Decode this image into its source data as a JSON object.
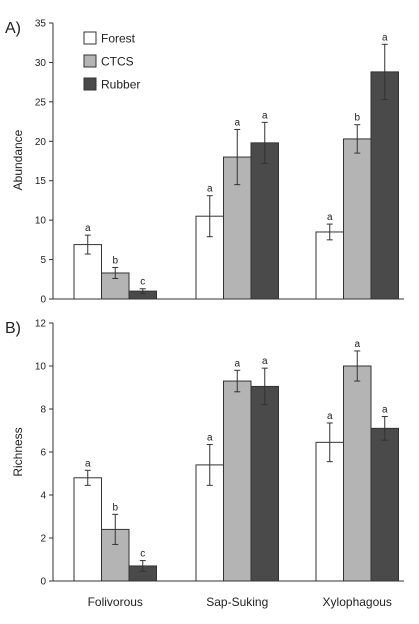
{
  "chart_data": [
    {
      "type": "bar",
      "panel_label": "A)",
      "ylabel": "Abundance",
      "ylim": [
        0,
        35
      ],
      "yticks": [
        "0",
        "5",
        "10",
        "15",
        "20",
        "25",
        "30",
        "35"
      ],
      "categories": [
        "Folivorous",
        "Sap-Suking",
        "Xylophagous"
      ],
      "legend": "top-left",
      "series": [
        {
          "name": "Forest",
          "color": "#ffffff",
          "values": [
            6.9,
            10.5,
            8.5
          ],
          "errors": [
            1.2,
            2.6,
            1.0
          ],
          "letters": [
            "a",
            "a",
            "a"
          ]
        },
        {
          "name": "CTCS",
          "color": "#b4b4b4",
          "values": [
            3.3,
            18.0,
            20.3
          ],
          "errors": [
            0.7,
            3.5,
            1.8
          ],
          "letters": [
            "b",
            "a",
            "b"
          ]
        },
        {
          "name": "Rubber",
          "color": "#4a4a4a",
          "values": [
            1.0,
            19.8,
            28.8
          ],
          "errors": [
            0.3,
            2.6,
            3.5
          ],
          "letters": [
            "c",
            "a",
            "a"
          ]
        }
      ]
    },
    {
      "type": "bar",
      "panel_label": "B)",
      "ylabel": "Richness",
      "ylim": [
        0,
        12
      ],
      "yticks": [
        "0",
        "2",
        "4",
        "6",
        "8",
        "10",
        "12"
      ],
      "categories": [
        "Folivorous",
        "Sap-Suking",
        "Xylophagous"
      ],
      "series": [
        {
          "name": "Forest",
          "color": "#ffffff",
          "values": [
            4.8,
            5.4,
            6.45
          ],
          "errors": [
            0.35,
            0.95,
            0.9
          ],
          "letters": [
            "a",
            "a",
            "a"
          ]
        },
        {
          "name": "CTCS",
          "color": "#b4b4b4",
          "values": [
            2.4,
            9.3,
            10.0
          ],
          "errors": [
            0.7,
            0.5,
            0.7
          ],
          "letters": [
            "b",
            "a",
            "a"
          ]
        },
        {
          "name": "Rubber",
          "color": "#4a4a4a",
          "values": [
            0.7,
            9.05,
            7.1
          ],
          "errors": [
            0.25,
            0.85,
            0.55
          ],
          "letters": [
            "c",
            "a",
            "a"
          ]
        }
      ]
    }
  ]
}
